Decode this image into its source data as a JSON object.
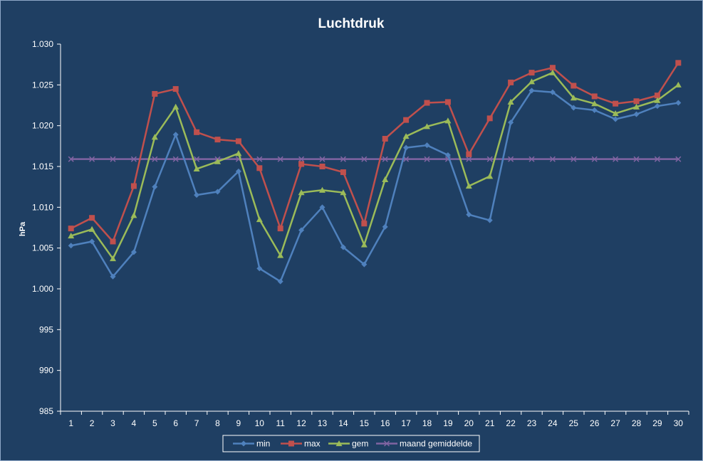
{
  "chart_data": {
    "type": "line",
    "title": "Luchtdruk",
    "xlabel": "",
    "ylabel": "hPa",
    "ylim": [
      985,
      1030
    ],
    "y_ticks": [
      "985",
      "990",
      "995",
      "1.000",
      "1.005",
      "1.010",
      "1.015",
      "1.020",
      "1.025",
      "1.030"
    ],
    "y_tick_values": [
      985,
      990,
      995,
      1000,
      1005,
      1010,
      1015,
      1020,
      1025,
      1030
    ],
    "categories": [
      "1",
      "2",
      "3",
      "4",
      "5",
      "6",
      "7",
      "8",
      "9",
      "10",
      "11",
      "12",
      "13",
      "14",
      "15",
      "16",
      "17",
      "18",
      "19",
      "20",
      "21",
      "22",
      "23",
      "24",
      "25",
      "26",
      "27",
      "28",
      "29",
      "30"
    ],
    "grid": false,
    "legend_position": "bottom",
    "series": [
      {
        "name": "min",
        "color": "#4f81bd",
        "marker": "diamond",
        "values": [
          1005.3,
          1005.8,
          1001.5,
          1004.5,
          1012.5,
          1018.9,
          1011.5,
          1011.9,
          1014.4,
          1002.5,
          1000.9,
          1007.2,
          1010.0,
          1005.1,
          1003.0,
          1007.6,
          1017.3,
          1017.6,
          1016.4,
          1009.1,
          1008.4,
          1020.4,
          1024.3,
          1024.1,
          1022.2,
          1021.9,
          1020.8,
          1021.4,
          1022.4,
          1022.8
        ]
      },
      {
        "name": "max",
        "color": "#c0504d",
        "marker": "square",
        "values": [
          1007.4,
          1008.7,
          1005.8,
          1012.6,
          1023.9,
          1024.5,
          1019.2,
          1018.3,
          1018.1,
          1014.8,
          1007.4,
          1015.3,
          1015.0,
          1014.3,
          1008.0,
          1018.4,
          1020.7,
          1022.8,
          1022.9,
          1016.5,
          1020.9,
          1025.3,
          1026.5,
          1027.1,
          1024.9,
          1023.6,
          1022.7,
          1023.0,
          1023.7,
          1027.7
        ]
      },
      {
        "name": "gem",
        "color": "#9bbb59",
        "marker": "triangle",
        "values": [
          1006.5,
          1007.3,
          1003.7,
          1009.0,
          1018.6,
          1022.3,
          1014.7,
          1015.6,
          1016.6,
          1008.5,
          1004.1,
          1011.8,
          1012.1,
          1011.8,
          1005.4,
          1013.4,
          1018.7,
          1019.9,
          1020.6,
          1012.6,
          1013.8,
          1022.9,
          1025.4,
          1026.5,
          1023.4,
          1022.7,
          1021.5,
          1022.3,
          1023.1,
          1025.0
        ]
      },
      {
        "name": "maand gemiddelde",
        "color": "#8064a2",
        "marker": "x",
        "values": [
          1015.9,
          1015.9,
          1015.9,
          1015.9,
          1015.9,
          1015.9,
          1015.9,
          1015.9,
          1015.9,
          1015.9,
          1015.9,
          1015.9,
          1015.9,
          1015.9,
          1015.9,
          1015.9,
          1015.9,
          1015.9,
          1015.9,
          1015.9,
          1015.9,
          1015.9,
          1015.9,
          1015.9,
          1015.9,
          1015.9,
          1015.9,
          1015.9,
          1015.9,
          1015.9
        ]
      }
    ],
    "colors": {
      "background": "#1f3f63",
      "axis": "#ffffff",
      "outer_border": "#8fa8c8"
    }
  }
}
